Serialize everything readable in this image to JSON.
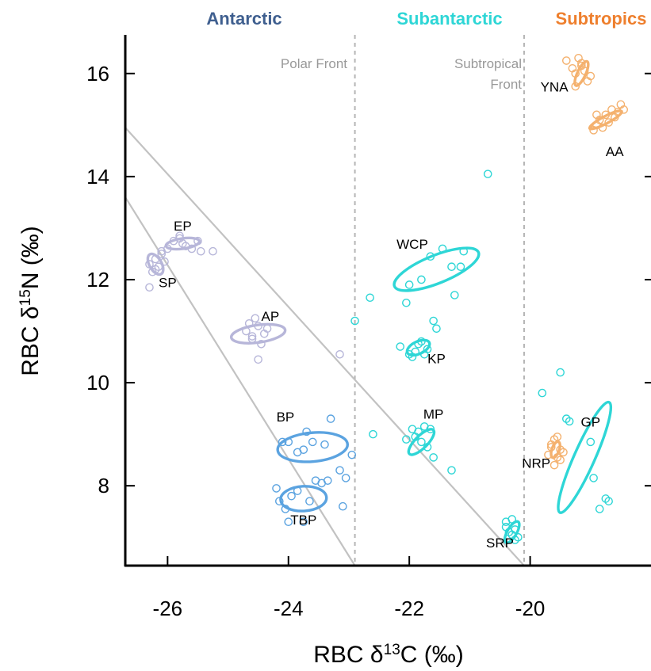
{
  "chart_data": {
    "type": "scatter",
    "xlabel": "RBC δ13C (‰)",
    "ylabel": "RBC δ15N (‰)",
    "xlim": [
      -26.7,
      -18.0
    ],
    "ylim": [
      6.45,
      16.75
    ],
    "xticks": [
      -26,
      -24,
      -22,
      -20
    ],
    "xtick_labels": [
      "-26",
      "-24",
      "-22",
      "-20"
    ],
    "yticks": [
      8,
      10,
      12,
      14,
      16
    ],
    "ytick_labels": [
      "8",
      "10",
      "12",
      "14",
      "16"
    ],
    "grid": false,
    "regions": [
      {
        "label": "Antarctic",
        "color": "#3F5F8F"
      },
      {
        "label": "Subantarctic",
        "color": "#2ED6D6"
      },
      {
        "label": "Subtropics",
        "color": "#EE7F2D"
      }
    ],
    "fronts": [
      {
        "label": "Polar Front",
        "x": -22.9
      },
      {
        "label": "Subtropical\nFront",
        "x": -20.1
      }
    ],
    "boundary_lines": [
      {
        "x": [
          -26.7,
          -20.1
        ],
        "y": [
          14.95,
          6.45
        ]
      },
      {
        "x": [
          -26.7,
          -22.9
        ],
        "y": [
          13.6,
          6.45
        ]
      }
    ],
    "series": [
      {
        "name": "EP",
        "color": "#B7B6D9",
        "x": [
          -26.0,
          -25.9,
          -25.8,
          -25.75,
          -25.7,
          -25.6,
          -25.5,
          -25.45,
          -25.8,
          -25.25
        ],
        "y": [
          12.6,
          12.75,
          12.8,
          12.7,
          12.65,
          12.6,
          12.75,
          12.55,
          12.85,
          12.55
        ],
        "ellipse": {
          "cx": -25.75,
          "cy": 12.7,
          "rx": 0.28,
          "ry": 0.1,
          "angle": -8
        }
      },
      {
        "name": "SP",
        "color": "#B7B6D9",
        "x": [
          -26.3,
          -26.25,
          -26.2,
          -26.15,
          -26.1,
          -26.3,
          -26.05,
          -26.2,
          -26.1
        ],
        "y": [
          12.3,
          12.15,
          12.4,
          12.25,
          12.5,
          11.85,
          12.35,
          12.2,
          12.55
        ],
        "ellipse": {
          "cx": -26.2,
          "cy": 12.3,
          "rx": 0.1,
          "ry": 0.22,
          "angle": -30
        }
      },
      {
        "name": "AP",
        "color": "#B7B6D9",
        "x": [
          -24.7,
          -24.6,
          -24.5,
          -24.45,
          -24.55,
          -24.65,
          -24.4,
          -24.5,
          -24.6,
          -24.35
        ],
        "y": [
          11.0,
          10.9,
          11.1,
          10.75,
          11.25,
          11.15,
          10.95,
          10.45,
          10.85,
          11.05
        ],
        "ellipse": {
          "cx": -24.5,
          "cy": 10.95,
          "rx": 0.45,
          "ry": 0.17,
          "angle": -8
        }
      },
      {
        "name": "BP",
        "color": "#5BA3E0",
        "x": [
          -24.1,
          -24.0,
          -23.85,
          -23.7,
          -23.6,
          -23.4,
          -23.3,
          -23.15,
          -23.05,
          -22.95,
          -23.75
        ],
        "y": [
          8.85,
          8.85,
          8.65,
          9.05,
          8.85,
          8.8,
          9.3,
          8.3,
          8.15,
          8.6,
          8.7
        ],
        "ellipse": {
          "cx": -23.6,
          "cy": 8.75,
          "rx": 0.58,
          "ry": 0.28,
          "angle": -5
        }
      },
      {
        "name": "TBP",
        "color": "#5BA3E0",
        "x": [
          -24.2,
          -24.15,
          -24.05,
          -23.95,
          -23.85,
          -23.75,
          -23.65,
          -23.55,
          -23.45,
          -23.35,
          -23.1,
          -24.0
        ],
        "y": [
          7.95,
          7.7,
          7.55,
          7.8,
          7.9,
          7.3,
          7.7,
          8.1,
          8.05,
          8.1,
          7.6,
          7.3
        ],
        "ellipse": {
          "cx": -23.75,
          "cy": 7.75,
          "rx": 0.38,
          "ry": 0.24,
          "angle": -3
        }
      },
      {
        "name": "OUT-grey",
        "color": "#B7B6D9",
        "x": [
          -23.15
        ],
        "y": [
          10.55
        ],
        "ellipse": null
      },
      {
        "name": "WCP",
        "color": "#2ED6D6",
        "x": [
          -22.05,
          -22.0,
          -21.8,
          -21.65,
          -21.45,
          -21.3,
          -21.25,
          -21.15,
          -21.1
        ],
        "y": [
          11.55,
          11.9,
          12.0,
          12.45,
          12.6,
          12.25,
          11.7,
          12.25,
          12.55
        ],
        "ellipse": {
          "cx": -21.55,
          "cy": 12.2,
          "rx": 0.75,
          "ry": 0.27,
          "angle": -22
        }
      },
      {
        "name": "KP",
        "color": "#2ED6D6",
        "x": [
          -22.15,
          -22.0,
          -21.9,
          -21.85,
          -21.8,
          -21.75,
          -21.7,
          -21.6,
          -21.55,
          -21.95
        ],
        "y": [
          10.7,
          10.55,
          10.6,
          10.75,
          10.8,
          10.55,
          10.65,
          11.2,
          11.05,
          10.5
        ],
        "ellipse": {
          "cx": -21.85,
          "cy": 10.68,
          "rx": 0.2,
          "ry": 0.12,
          "angle": -25
        }
      },
      {
        "name": "MP",
        "color": "#2ED6D6",
        "x": [
          -22.05,
          -21.95,
          -21.9,
          -21.85,
          -21.8,
          -21.75,
          -21.7,
          -21.65,
          -21.6,
          -21.3,
          -22.6
        ],
        "y": [
          8.9,
          9.1,
          8.95,
          9.05,
          8.85,
          9.15,
          8.75,
          9.1,
          8.55,
          8.3,
          9.0
        ],
        "ellipse": {
          "cx": -21.8,
          "cy": 8.85,
          "rx": 0.28,
          "ry": 0.12,
          "angle": -45
        }
      },
      {
        "name": "SRP",
        "color": "#2ED6D6",
        "x": [
          -20.4,
          -20.35,
          -20.3,
          -20.25,
          -20.2,
          -20.3,
          -20.4,
          -20.25
        ],
        "y": [
          7.3,
          7.1,
          7.05,
          7.15,
          7.0,
          7.35,
          7.2,
          6.95
        ],
        "ellipse": {
          "cx": -20.3,
          "cy": 7.1,
          "rx": 0.2,
          "ry": 0.09,
          "angle": -60
        }
      },
      {
        "name": "GP",
        "color": "#2ED6D6",
        "x": [
          -19.8,
          -19.5,
          -19.4,
          -19.35,
          -19.0,
          -18.95,
          -18.85,
          -18.75,
          -18.7
        ],
        "y": [
          9.8,
          10.2,
          9.3,
          9.25,
          8.85,
          8.15,
          7.55,
          7.75,
          7.7
        ],
        "ellipse": {
          "cx": -19.1,
          "cy": 8.55,
          "rx": 1.0,
          "ry": 0.2,
          "angle": -66
        }
      },
      {
        "name": "OUT-cyan",
        "color": "#2ED6D6",
        "x": [
          -20.7,
          -22.65,
          -22.9
        ],
        "y": [
          14.05,
          11.65,
          11.2
        ],
        "ellipse": null
      },
      {
        "name": "YNA",
        "color": "#F4B16E",
        "x": [
          -19.4,
          -19.3,
          -19.25,
          -19.2,
          -19.15,
          -19.1,
          -19.05,
          -19.0,
          -19.15,
          -19.25
        ],
        "y": [
          16.25,
          16.1,
          16.0,
          16.3,
          16.15,
          16.05,
          15.85,
          15.95,
          16.2,
          15.75
        ],
        "ellipse": {
          "cx": -19.15,
          "cy": 16.0,
          "rx": 0.22,
          "ry": 0.08,
          "angle": -65
        }
      },
      {
        "name": "AA",
        "color": "#F4B16E",
        "x": [
          -18.95,
          -18.9,
          -18.85,
          -18.8,
          -18.75,
          -18.7,
          -18.65,
          -18.6,
          -18.55,
          -18.5,
          -18.45,
          -18.9
        ],
        "y": [
          14.9,
          15.0,
          15.1,
          14.95,
          15.2,
          15.05,
          15.3,
          15.15,
          15.25,
          15.4,
          15.3,
          15.2
        ],
        "ellipse": {
          "cx": -18.75,
          "cy": 15.1,
          "rx": 0.3,
          "ry": 0.07,
          "angle": -28
        }
      },
      {
        "name": "NRP",
        "color": "#F4B16E",
        "x": [
          -19.7,
          -19.65,
          -19.6,
          -19.55,
          -19.5,
          -19.45,
          -19.6,
          -19.55,
          -19.5,
          -19.65
        ],
        "y": [
          8.6,
          8.75,
          8.9,
          8.55,
          8.7,
          8.65,
          8.4,
          8.95,
          8.5,
          8.8
        ],
        "ellipse": {
          "cx": -19.58,
          "cy": 8.7,
          "rx": 0.14,
          "ry": 0.07,
          "angle": -70
        }
      }
    ],
    "labels": [
      {
        "text": "EP",
        "x": -25.75,
        "y": 12.95
      },
      {
        "text": "SP",
        "x": -26.0,
        "y": 11.85
      },
      {
        "text": "AP",
        "x": -24.3,
        "y": 11.2
      },
      {
        "text": "BP",
        "x": -24.05,
        "y": 9.25
      },
      {
        "text": "TBP",
        "x": -23.75,
        "y": 7.25
      },
      {
        "text": "WCP",
        "x": -21.95,
        "y": 12.6
      },
      {
        "text": "KP",
        "x": -21.55,
        "y": 10.38
      },
      {
        "text": "MP",
        "x": -21.6,
        "y": 9.3
      },
      {
        "text": "SRP",
        "x": -20.5,
        "y": 6.8
      },
      {
        "text": "GP",
        "x": -19.0,
        "y": 9.15
      },
      {
        "text": "NRP",
        "x": -19.9,
        "y": 8.35
      },
      {
        "text": "YNA",
        "x": -19.6,
        "y": 15.65
      },
      {
        "text": "AA",
        "x": -18.6,
        "y": 14.4
      }
    ]
  }
}
